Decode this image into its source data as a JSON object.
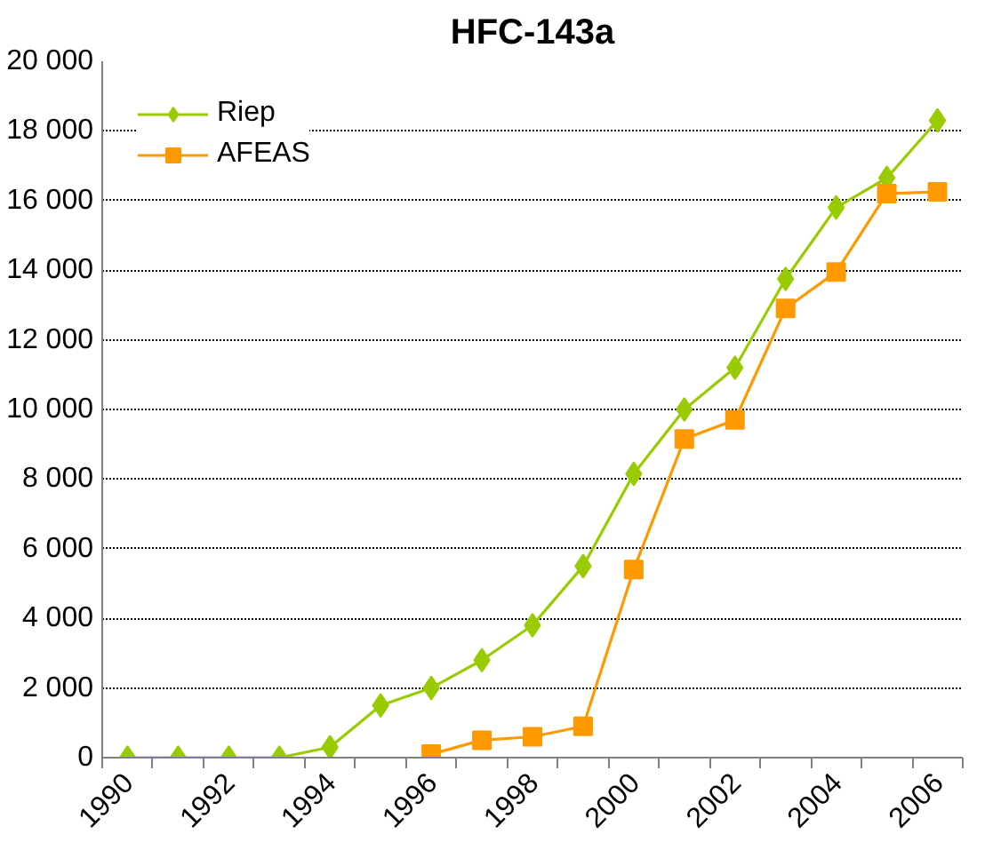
{
  "chart_data": {
    "type": "line",
    "title": "HFC-143a",
    "categories": [
      "1990",
      null,
      "1992",
      null,
      "1994",
      null,
      "1996",
      null,
      "1998",
      null,
      "2000",
      null,
      "2002",
      null,
      "2004",
      null,
      "2006"
    ],
    "series": [
      {
        "name": "Riep",
        "color": "#99cc00",
        "marker": "diamond",
        "values": [
          0,
          0,
          0,
          0,
          300,
          1500,
          2000,
          2800,
          3800,
          5500,
          8150,
          10000,
          11200,
          13750,
          15800,
          16650,
          18300
        ]
      },
      {
        "name": "AFEAS",
        "color": "#ff9900",
        "marker": "square",
        "values": [
          null,
          null,
          null,
          null,
          null,
          null,
          100,
          500,
          600,
          900,
          5400,
          9150,
          9700,
          12900,
          13950,
          16200,
          16250
        ]
      }
    ],
    "ylim": [
      0,
      20000
    ],
    "yticks": [
      0,
      {
        "value": 2000,
        "label": "2 000"
      },
      {
        "value": 4000,
        "label": "4 000"
      },
      {
        "value": 6000,
        "label": "6 000"
      },
      {
        "value": 8000,
        "label": "8 000"
      },
      {
        "value": 10000,
        "label": "10 000"
      },
      {
        "value": 12000,
        "label": "12 000"
      },
      {
        "value": 14000,
        "label": "14 000"
      },
      {
        "value": 16000,
        "label": "16 000"
      },
      {
        "value": 18000,
        "label": "18 000"
      },
      {
        "value": 20000,
        "label": "20 000"
      }
    ],
    "grid": "y",
    "legend": "top left"
  }
}
